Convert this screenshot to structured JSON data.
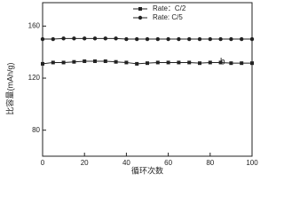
{
  "chart_data": {
    "type": "line",
    "x": [
      0,
      5,
      10,
      15,
      20,
      25,
      30,
      35,
      40,
      45,
      50,
      55,
      60,
      65,
      70,
      75,
      80,
      85,
      90,
      95,
      100
    ],
    "series": [
      {
        "name": "Rate：C/2",
        "color": "#222222",
        "marker": "square",
        "values": [
          131,
          132,
          132,
          132.5,
          133,
          133,
          133,
          132.5,
          132,
          131,
          131.5,
          132,
          132,
          132,
          132,
          131.5,
          132,
          132,
          131.5,
          131.5,
          131.5
        ]
      },
      {
        "name": "Rate: C/5",
        "color": "#222222",
        "marker": "circle",
        "values": [
          150,
          150,
          150.5,
          150.5,
          150.5,
          150.5,
          150.5,
          150.5,
          150,
          150,
          150,
          150,
          150,
          150,
          150,
          150,
          150,
          150,
          150,
          150,
          150
        ]
      }
    ],
    "annotation": "b",
    "xlabel": "循环次数",
    "ylabel": "比容量(mAh/g)",
    "xlim": [
      0,
      100
    ],
    "xticks": [
      0,
      20,
      40,
      60,
      80,
      100
    ],
    "ylim": [
      60,
      178
    ],
    "yticks": [
      80,
      120,
      160
    ],
    "legend": "top"
  }
}
